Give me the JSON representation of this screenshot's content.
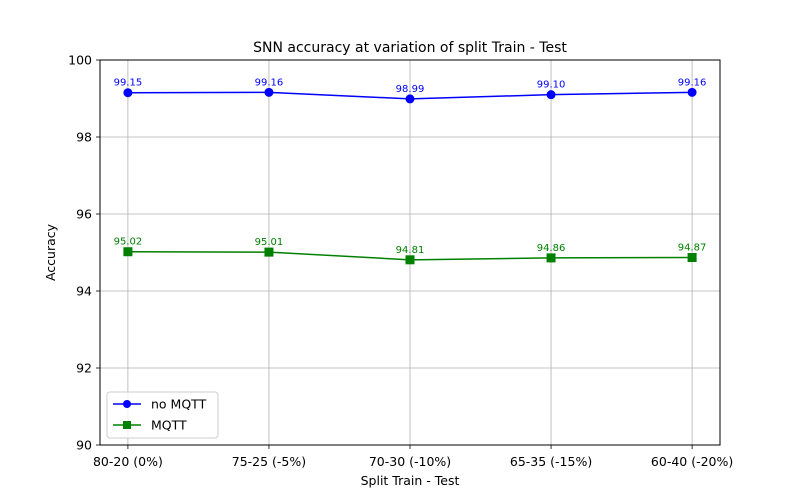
{
  "chart_data": {
    "type": "line",
    "title": "SNN accuracy at variation of split Train - Test",
    "xlabel": "Split Train - Test",
    "ylabel": "Accuracy",
    "categories": [
      "80-20 (0%)",
      "75-25 (-5%)",
      "70-30 (-10%)",
      "65-35 (-15%)",
      "60-40 (-20%)"
    ],
    "ylim": [
      90,
      100
    ],
    "yticks": [
      90,
      92,
      94,
      96,
      98,
      100
    ],
    "grid": true,
    "legend_position": "lower-left",
    "series": [
      {
        "name": "no MQTT",
        "values": [
          99.15,
          99.16,
          98.99,
          99.1,
          99.16
        ],
        "value_labels": [
          "99.15",
          "99.16",
          "98.99",
          "99.10",
          "99.16"
        ],
        "color": "#0000ff",
        "marker": "circle"
      },
      {
        "name": "MQTT",
        "values": [
          95.02,
          95.01,
          94.81,
          94.86,
          94.87
        ],
        "value_labels": [
          "95.02",
          "95.01",
          "94.81",
          "94.86",
          "94.87"
        ],
        "color": "#008000",
        "marker": "square"
      }
    ]
  }
}
